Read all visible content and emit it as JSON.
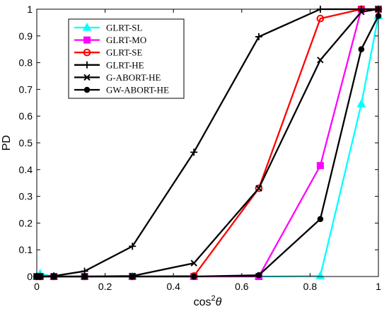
{
  "chart_data": {
    "type": "line",
    "title": "",
    "xlabel_main": "cos",
    "xlabel_sup": "2",
    "xlabel_theta": "θ",
    "ylabel": "PD",
    "xlim": [
      0,
      1
    ],
    "ylim": [
      0,
      1
    ],
    "xticks": [
      0,
      0.2,
      0.4,
      0.6,
      0.8,
      1
    ],
    "xtick_labels": [
      "0",
      "0.2",
      "0.4",
      "0.6",
      "0.8",
      "1"
    ],
    "yticks": [
      0,
      0.1,
      0.2,
      0.3,
      0.4,
      0.5,
      0.6,
      0.7,
      0.8,
      0.9,
      1
    ],
    "ytick_labels": [
      "0",
      "0.1",
      "0.2",
      "0.3",
      "0.4",
      "0.5",
      "0.6",
      "0.7",
      "0.8",
      "0.9",
      "1"
    ],
    "grid": false,
    "legend_position": "top-left",
    "series": [
      {
        "name": "GLRT-SL",
        "color": "#00ffff",
        "marker": "triangle",
        "x": [
          0,
          0.01,
          0.05,
          0.14,
          0.28,
          0.46,
          0.65,
          0.83,
          0.95,
          1
        ],
        "y": [
          0,
          0.01,
          0,
          0,
          0,
          0,
          0,
          0.002,
          0.645,
          0.975
        ]
      },
      {
        "name": "GLRT-MO",
        "color": "#ff00ff",
        "marker": "square",
        "x": [
          0,
          0.01,
          0.05,
          0.14,
          0.28,
          0.46,
          0.65,
          0.83,
          0.95,
          1
        ],
        "y": [
          0,
          0,
          0,
          0,
          0,
          0,
          0,
          0.415,
          1,
          1
        ]
      },
      {
        "name": "GLRT-SE",
        "color": "#ff0000",
        "marker": "circle-open",
        "x": [
          0,
          0.01,
          0.05,
          0.14,
          0.28,
          0.46,
          0.65,
          0.83,
          0.95,
          1
        ],
        "y": [
          0,
          0,
          0,
          0,
          0,
          0.002,
          0.33,
          0.965,
          1,
          1
        ]
      },
      {
        "name": "GLRT-HE",
        "color": "#000000",
        "marker": "plus",
        "x": [
          0,
          0.01,
          0.05,
          0.14,
          0.28,
          0.46,
          0.65,
          0.83,
          0.95,
          1
        ],
        "y": [
          0,
          0,
          0.002,
          0.02,
          0.113,
          0.465,
          0.897,
          1,
          1,
          1
        ]
      },
      {
        "name": "G-ABORT-HE",
        "color": "#000000",
        "marker": "x",
        "x": [
          0,
          0.01,
          0.05,
          0.14,
          0.28,
          0.46,
          0.65,
          0.83,
          0.95,
          1
        ],
        "y": [
          0,
          0,
          0,
          0,
          0.002,
          0.05,
          0.33,
          0.81,
          0.99,
          1
        ]
      },
      {
        "name": "GW-ABORT-HE",
        "color": "#000000",
        "marker": "dot",
        "x": [
          0,
          0.01,
          0.05,
          0.14,
          0.28,
          0.46,
          0.65,
          0.83,
          0.95,
          1
        ],
        "y": [
          0,
          0,
          0,
          0,
          0,
          0,
          0.005,
          0.215,
          0.85,
          0.975
        ]
      }
    ]
  }
}
